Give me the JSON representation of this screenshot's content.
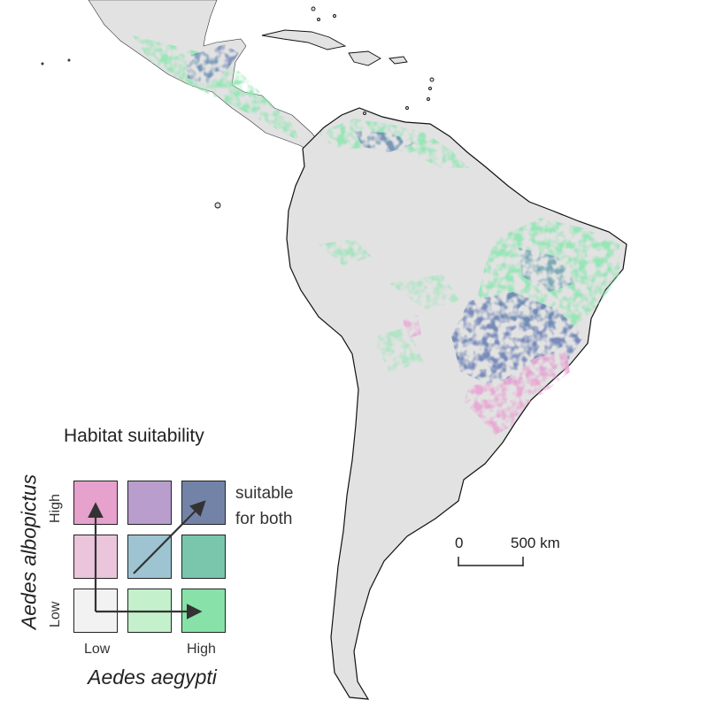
{
  "legend": {
    "title": "Habitat suitability",
    "y_axis_label": "Aedes albopictus",
    "x_axis_label": "Aedes aegypti",
    "y_ticks": {
      "low": "Low",
      "high": "High"
    },
    "x_ticks": {
      "low": "Low",
      "high": "High"
    },
    "note_line1": "suitable",
    "note_line2": "for both",
    "colors": {
      "row_high": [
        "#e6a1cd",
        "#b89dcd",
        "#7383a8"
      ],
      "row_mid": [
        "#ebc5dc",
        "#9ec4d2",
        "#7ac6ad"
      ],
      "row_low": [
        "#f2f2f2",
        "#c4f0cc",
        "#88e1a8"
      ]
    }
  },
  "scale_bar": {
    "start_label": "0",
    "end_label": "500 km"
  },
  "map_colors": {
    "land": "#e2e2e2",
    "coast": "#111111",
    "albopictus": "#e8a6d3",
    "both": "#6d82b5",
    "aegypti": "#92e6b4"
  }
}
